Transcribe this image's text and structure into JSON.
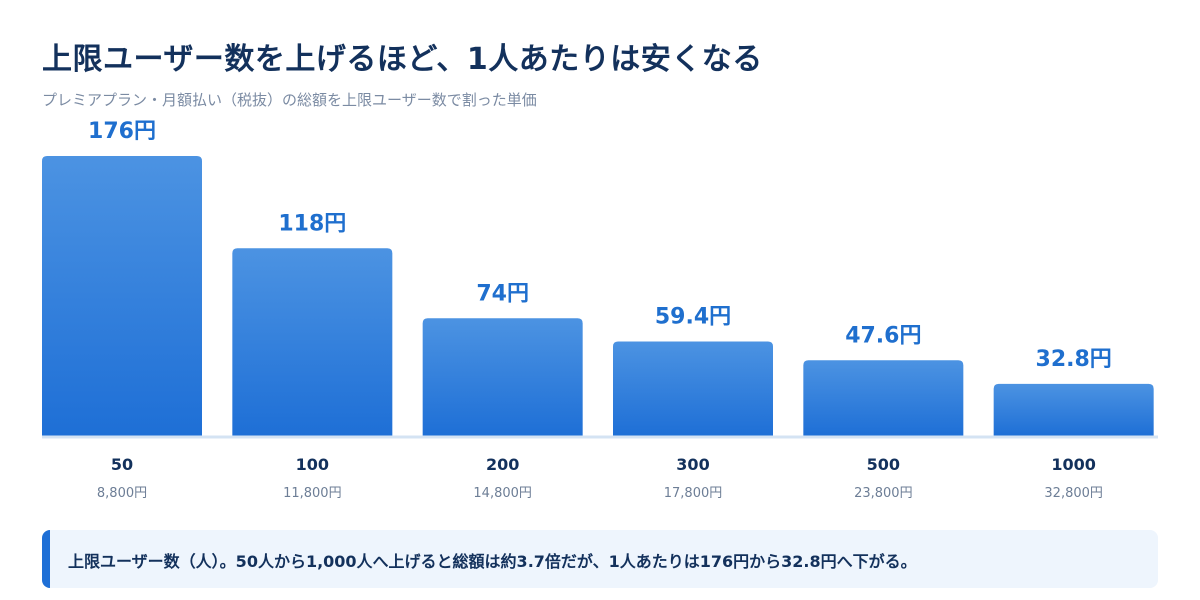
{
  "title": "上限ユーザー数を上げるほど、1人あたりは安くなる",
  "subtitle": "プレミアプラン・月額払い（税抜）の総額を上限ユーザー数で割った単価",
  "note": "上限ユーザー数（人）。50人から1,000人へ上げると総額は約3.7倍だが、1人あたりは176円から32.8円へ下がる。",
  "colors": {
    "bar_top": "#4c93e2",
    "bar_bottom": "#1e6fd6",
    "value_label": "#1f6fce",
    "baseline": "#d4e3f3",
    "category_label": "#13315c",
    "total_label": "#6d7e96",
    "note_accent": "#1e6fd6",
    "note_bg": "#eef5fd"
  },
  "chart_data": {
    "type": "bar",
    "title": "上限ユーザー数を上げるほど、1人あたりは安くなる",
    "subtitle": "プレミアプラン・月額払い（税抜）の総額を上限ユーザー数で割った単価",
    "xlabel": "",
    "ylabel": "",
    "categories": [
      "50",
      "100",
      "200",
      "300",
      "500",
      "1000"
    ],
    "values": [
      176,
      118,
      74,
      59.4,
      47.6,
      32.8
    ],
    "value_labels": [
      "176円",
      "118円",
      "74円",
      "59.4円",
      "47.6円",
      "32.8円"
    ],
    "totals": [
      "8,800円",
      "11,800円",
      "14,800円",
      "17,800円",
      "23,800円",
      "32,800円"
    ],
    "ylim": [
      0,
      176
    ],
    "grid": false,
    "legend": "none"
  }
}
